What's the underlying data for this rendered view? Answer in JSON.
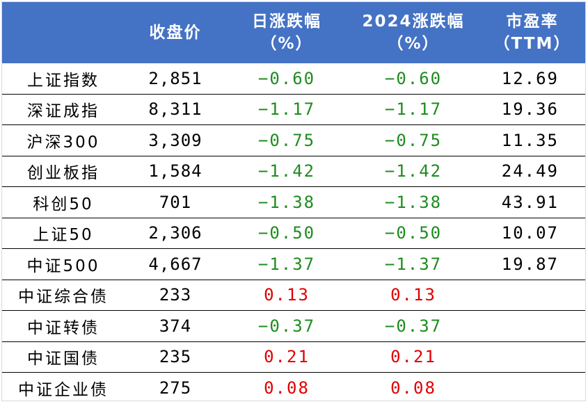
{
  "colors": {
    "header_bg": "#4472c4",
    "header_text": "#ffffff",
    "negative": "#1e8c1e",
    "positive": "#e00000"
  },
  "header": {
    "name": "",
    "close": "收盘价",
    "daily_l1": "日涨跌幅",
    "daily_l2": "（%）",
    "ytd_l1": "2024涨跌幅",
    "ytd_l2": "（%）",
    "pe_l1": "市盈率",
    "pe_l2": "（TTM）"
  },
  "rows": [
    {
      "name": "上证指数",
      "close": "2,851",
      "daily": "−0.60",
      "ytd": "−0.60",
      "pe": "12.69",
      "sign": "neg"
    },
    {
      "name": "深证成指",
      "close": "8,311",
      "daily": "−1.17",
      "ytd": "−1.17",
      "pe": "19.36",
      "sign": "neg"
    },
    {
      "name": "沪深300",
      "close": "3,309",
      "daily": "−0.75",
      "ytd": "−0.75",
      "pe": "11.35",
      "sign": "neg"
    },
    {
      "name": "创业板指",
      "close": "1,584",
      "daily": "−1.42",
      "ytd": "−1.42",
      "pe": "24.49",
      "sign": "neg"
    },
    {
      "name": "科创50",
      "close": "701",
      "daily": "−1.38",
      "ytd": "−1.38",
      "pe": "43.91",
      "sign": "neg"
    },
    {
      "name": "上证50",
      "close": "2,306",
      "daily": "−0.50",
      "ytd": "−0.50",
      "pe": "10.07",
      "sign": "neg"
    },
    {
      "name": "中证500",
      "close": "4,667",
      "daily": "−1.37",
      "ytd": "−1.37",
      "pe": "19.87",
      "sign": "neg"
    },
    {
      "name": "中证综合债",
      "close": "233",
      "daily": "0.13",
      "ytd": "0.13",
      "pe": "",
      "sign": "pos"
    },
    {
      "name": "中证转债",
      "close": "374",
      "daily": "−0.37",
      "ytd": "−0.37",
      "pe": "",
      "sign": "neg"
    },
    {
      "name": "中证国债",
      "close": "235",
      "daily": "0.21",
      "ytd": "0.21",
      "pe": "",
      "sign": "pos"
    },
    {
      "name": "中证企业债",
      "close": "275",
      "daily": "0.08",
      "ytd": "0.08",
      "pe": "",
      "sign": "pos"
    }
  ]
}
